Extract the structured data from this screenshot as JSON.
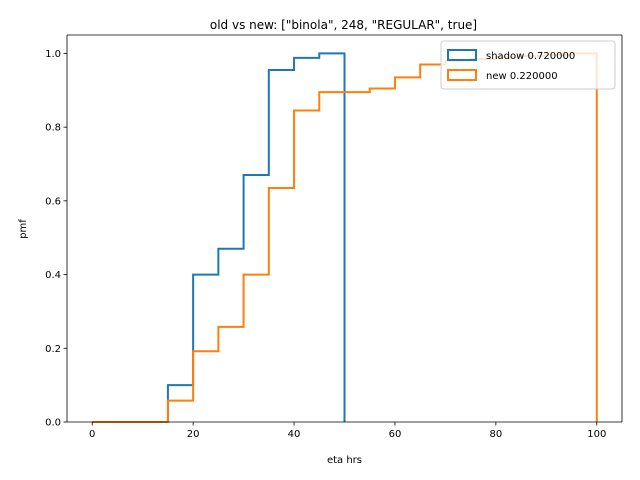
{
  "chart_data": {
    "type": "line",
    "subtype": "step-histogram",
    "title": "old vs new: [\"binola\", 248, \"REGULAR\", true]",
    "xlabel": "eta hrs",
    "ylabel": "pmf",
    "xlim": [
      -5,
      105
    ],
    "ylim": [
      0,
      1.05
    ],
    "xticks": [
      0,
      20,
      40,
      60,
      80,
      100
    ],
    "yticks": [
      0.0,
      0.2,
      0.4,
      0.6,
      0.8,
      1.0
    ],
    "xtick_labels": [
      "0",
      "20",
      "40",
      "60",
      "80",
      "100"
    ],
    "ytick_labels": [
      "0.0",
      "0.2",
      "0.4",
      "0.6",
      "0.8",
      "1.0"
    ],
    "grid": false,
    "legend_position": "top-right",
    "series": [
      {
        "name": "shadow 0.720000",
        "color": "#1f77b4",
        "bin_edges": [
          15,
          20,
          25,
          30,
          35,
          40,
          45,
          50
        ],
        "values": [
          0.1,
          0.4,
          0.47,
          0.67,
          0.955,
          0.988,
          1.0
        ]
      },
      {
        "name": "new 0.220000",
        "color": "#ff7f0e",
        "bin_edges": [
          0,
          15,
          20,
          25,
          30,
          35,
          40,
          45,
          50,
          55,
          60,
          65,
          70,
          75,
          80,
          85,
          90,
          95,
          100
        ],
        "values": [
          0.0,
          0.058,
          0.192,
          0.258,
          0.4,
          0.635,
          0.845,
          0.895,
          0.895,
          0.905,
          0.935,
          0.97,
          0.98,
          0.985,
          0.99,
          0.993,
          0.996,
          1.0
        ]
      }
    ]
  }
}
